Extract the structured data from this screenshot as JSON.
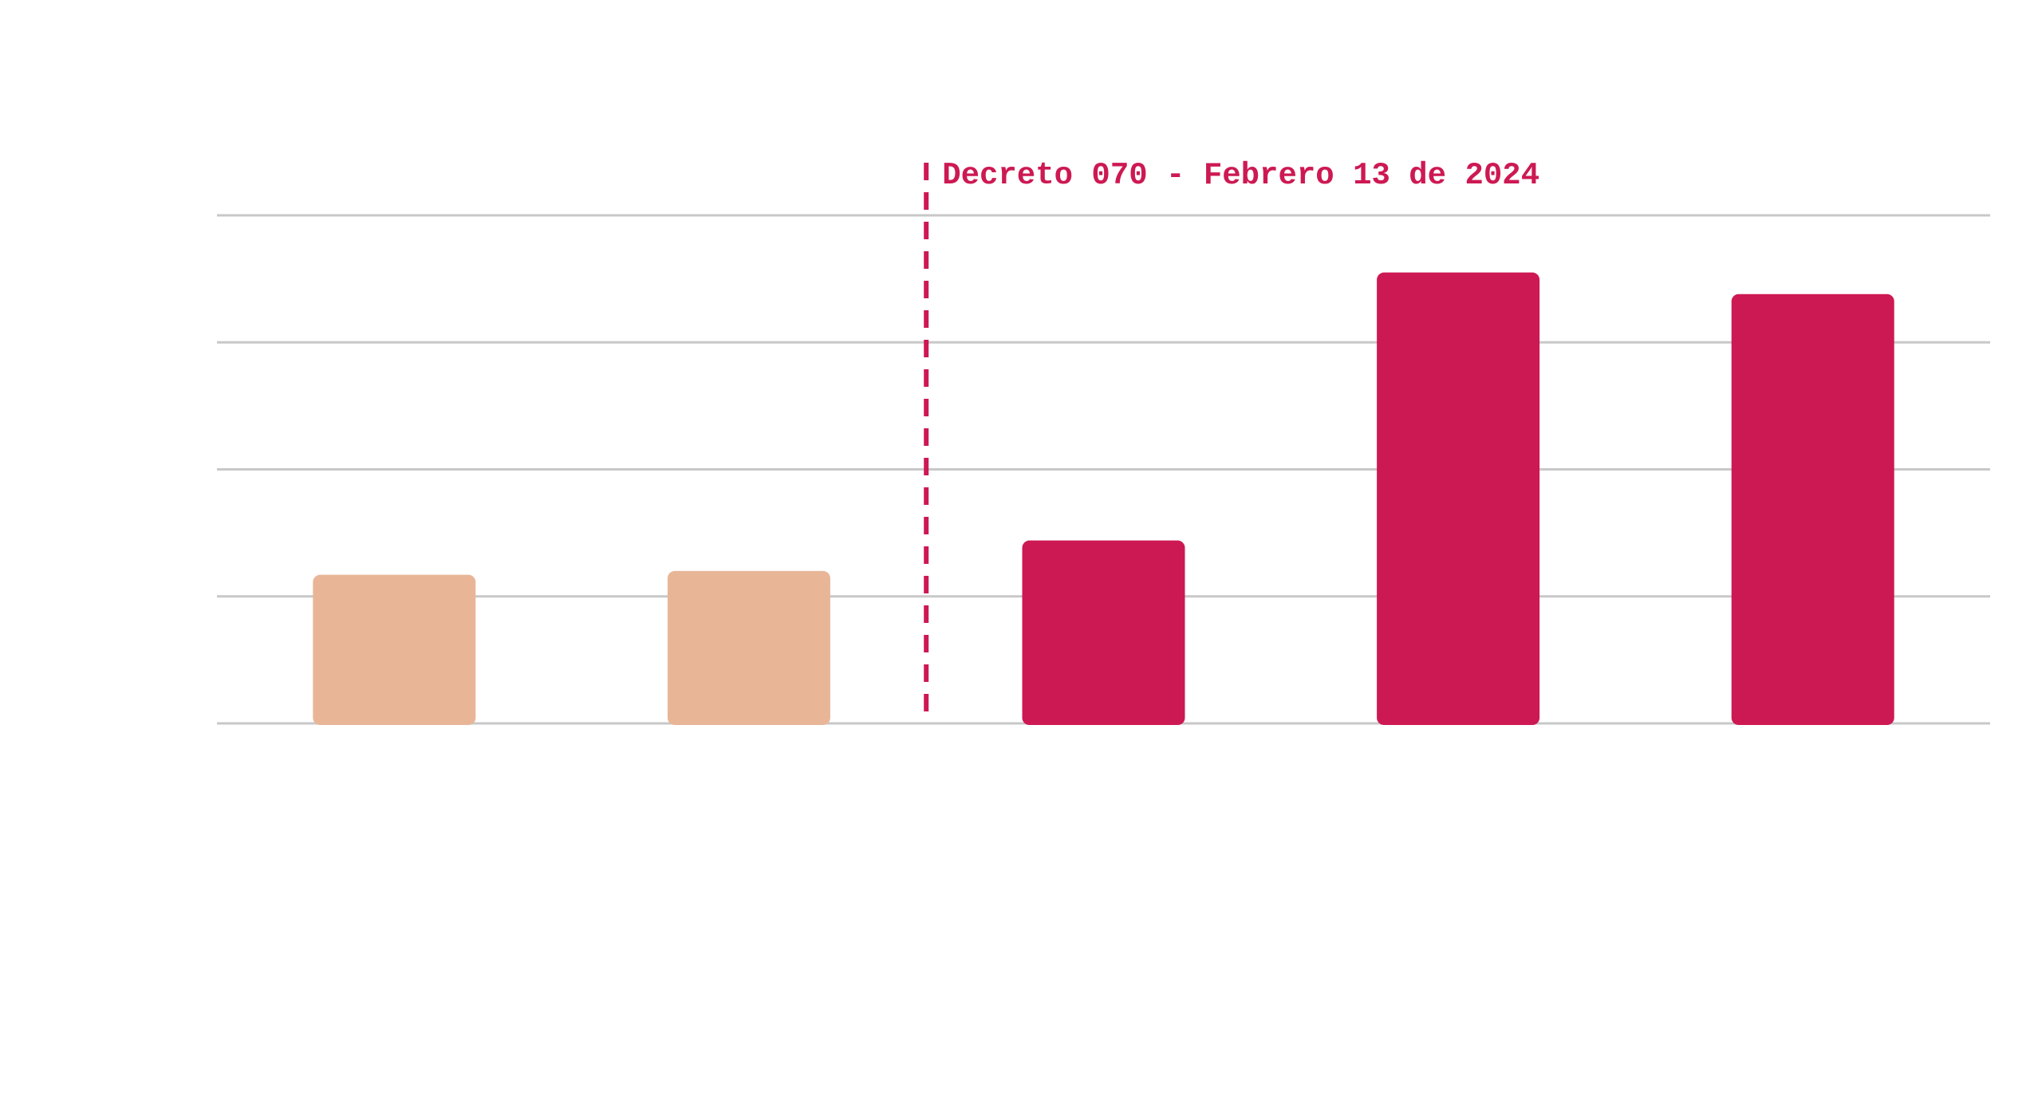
{
  "chart_data": {
    "type": "bar",
    "categories": [
      "",
      "",
      "",
      "",
      ""
    ],
    "values": [
      1.17,
      1.2,
      1.44,
      3.55,
      3.38
    ],
    "ylim": [
      0,
      4
    ],
    "grid": true,
    "colors": {
      "before": "#E8B697",
      "after": "#CD1953",
      "grid": "#C8C8C8",
      "annotation": "#CD1953"
    },
    "bar_groups": [
      "before",
      "before",
      "after",
      "after",
      "after"
    ],
    "annotation": {
      "text": "Decreto 070 - Febrero 13 de 2024",
      "between_categories": [
        1,
        2
      ]
    }
  }
}
